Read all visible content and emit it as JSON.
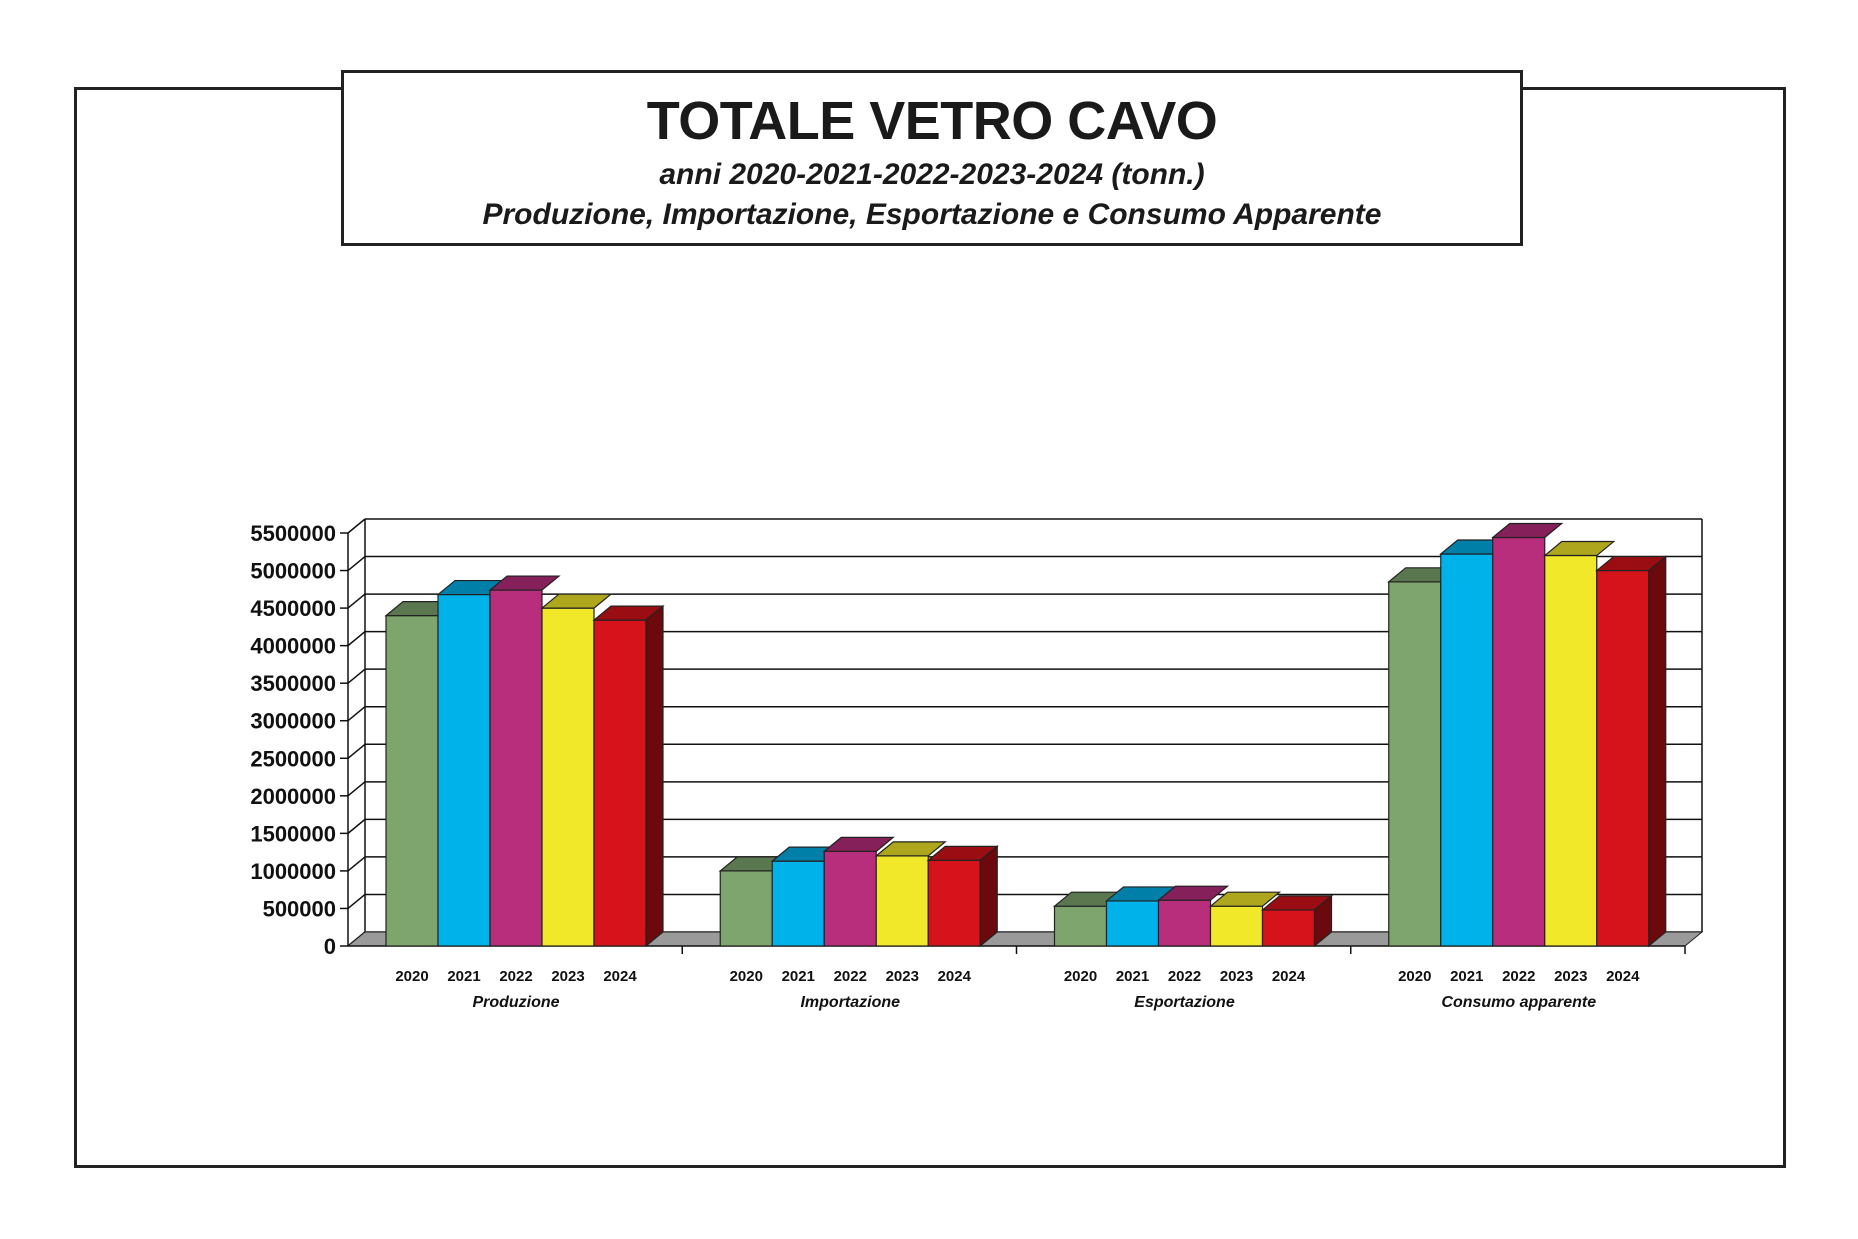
{
  "header": {
    "title": "TOTALE VETRO CAVO",
    "subtitle": "anni 2020-2021-2022-2023-2024 (tonn.)",
    "subtitle2": "Produzione, Importazione, Esportazione e Consumo Apparente"
  },
  "chart_data": {
    "type": "bar",
    "style": "3d-clustered",
    "categories": [
      "Produzione",
      "Importazione",
      "Esportazione",
      "Consumo apparente"
    ],
    "series": [
      {
        "name": "2020",
        "color": "#7fa56e",
        "values": [
          4400000,
          1000000,
          530000,
          4850000
        ]
      },
      {
        "name": "2021",
        "color": "#00b2ea",
        "values": [
          4680000,
          1130000,
          600000,
          5220000
        ]
      },
      {
        "name": "2022",
        "color": "#b92d7d",
        "values": [
          4740000,
          1260000,
          610000,
          5440000
        ]
      },
      {
        "name": "2023",
        "color": "#f2e82a",
        "values": [
          4500000,
          1200000,
          530000,
          5200000
        ]
      },
      {
        "name": "2024",
        "color": "#d6121a",
        "values": [
          4340000,
          1140000,
          480000,
          5000000
        ]
      }
    ],
    "yticks": [
      "0",
      "500000",
      "1000000",
      "1500000",
      "2000000",
      "2500000",
      "3000000",
      "3500000",
      "4000000",
      "4500000",
      "5000000",
      "5500000"
    ],
    "ylim": [
      0,
      5500000
    ],
    "grid": true,
    "legend": "none"
  }
}
